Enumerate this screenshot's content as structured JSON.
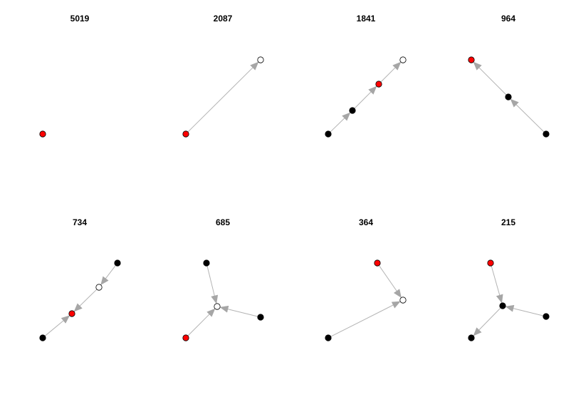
{
  "colors": {
    "focal": "#ff0000",
    "filled": "#000000",
    "open": "#ffffff",
    "edge": "#b3b3b3",
    "arrow": "#a6a6a6"
  },
  "panels": [
    {
      "title": "5019",
      "nodes": [
        {
          "id": "a",
          "type": "focal"
        }
      ],
      "edges": []
    },
    {
      "title": "2087",
      "nodes": [
        {
          "id": "a",
          "type": "focal"
        },
        {
          "id": "b",
          "type": "open"
        }
      ],
      "edges": [
        {
          "from": "a",
          "to": "b"
        }
      ]
    },
    {
      "title": "1841",
      "nodes": [
        {
          "id": "a",
          "type": "filled"
        },
        {
          "id": "b",
          "type": "filled"
        },
        {
          "id": "c",
          "type": "focal"
        },
        {
          "id": "d",
          "type": "open"
        }
      ],
      "edges": [
        {
          "from": "a",
          "to": "b"
        },
        {
          "from": "b",
          "to": "c"
        },
        {
          "from": "c",
          "to": "d"
        }
      ]
    },
    {
      "title": "964",
      "nodes": [
        {
          "id": "a",
          "type": "focal"
        },
        {
          "id": "b",
          "type": "filled"
        },
        {
          "id": "c",
          "type": "filled"
        }
      ],
      "edges": [
        {
          "from": "c",
          "to": "b"
        },
        {
          "from": "b",
          "to": "a"
        }
      ]
    },
    {
      "title": "734",
      "nodes": [
        {
          "id": "a",
          "type": "filled"
        },
        {
          "id": "b",
          "type": "focal"
        },
        {
          "id": "c",
          "type": "open"
        },
        {
          "id": "d",
          "type": "filled"
        }
      ],
      "edges": [
        {
          "from": "d",
          "to": "c"
        },
        {
          "from": "c",
          "to": "b"
        },
        {
          "from": "a",
          "to": "b"
        }
      ]
    },
    {
      "title": "685",
      "nodes": [
        {
          "id": "a",
          "type": "filled"
        },
        {
          "id": "b",
          "type": "open"
        },
        {
          "id": "c",
          "type": "filled"
        },
        {
          "id": "d",
          "type": "focal"
        }
      ],
      "edges": [
        {
          "from": "a",
          "to": "b"
        },
        {
          "from": "c",
          "to": "b"
        },
        {
          "from": "d",
          "to": "b"
        }
      ]
    },
    {
      "title": "364",
      "nodes": [
        {
          "id": "a",
          "type": "focal"
        },
        {
          "id": "b",
          "type": "open"
        },
        {
          "id": "c",
          "type": "filled"
        }
      ],
      "edges": [
        {
          "from": "a",
          "to": "b"
        },
        {
          "from": "c",
          "to": "b"
        }
      ]
    },
    {
      "title": "215",
      "nodes": [
        {
          "id": "a",
          "type": "focal"
        },
        {
          "id": "b",
          "type": "filled"
        },
        {
          "id": "c",
          "type": "filled"
        },
        {
          "id": "d",
          "type": "filled"
        }
      ],
      "edges": [
        {
          "from": "a",
          "to": "b"
        },
        {
          "from": "c",
          "to": "b"
        },
        {
          "from": "b",
          "to": "d"
        }
      ]
    }
  ]
}
